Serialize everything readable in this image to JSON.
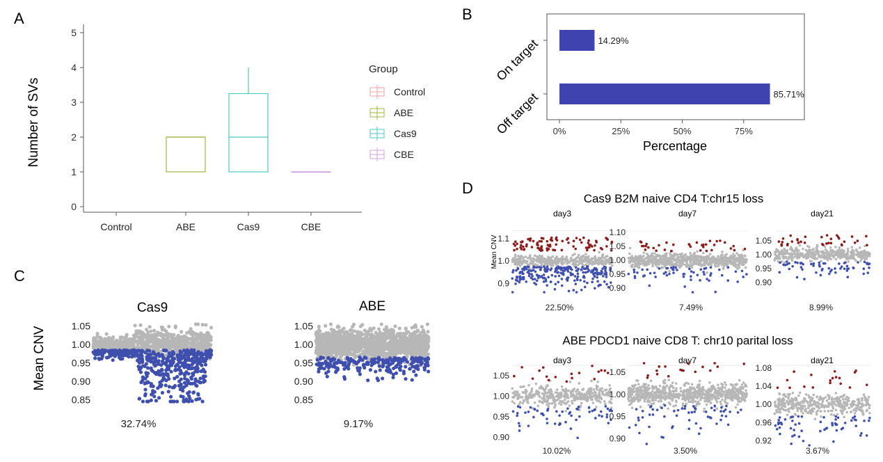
{
  "panel_labels": {
    "A": "A",
    "B": "B",
    "C": "C",
    "D": "D"
  },
  "colors": {
    "control": "#f4a3a3",
    "abe": "#a3b540",
    "cas9": "#4ec9c4",
    "cbe": "#d0a0e0",
    "bar": "#3f43b0",
    "grey": "#b7b7b7",
    "blue": "#3f4fae",
    "red": "#8a1c1c",
    "axis": "#777777"
  },
  "panel_a": {
    "ylabel": "Number of SVs",
    "legend_title": "Group",
    "legend": [
      "Control",
      "ABE",
      "Cas9",
      "CBE"
    ],
    "y_ticks": [
      "0",
      "1",
      "2",
      "3",
      "4",
      "5"
    ],
    "x_ticks": [
      "Control",
      "ABE",
      "Cas9",
      "CBE"
    ]
  },
  "panel_b": {
    "xlabel": "Percentage",
    "x_ticks": [
      "0%",
      "25%",
      "50%",
      "75%"
    ],
    "categories": [
      "On target",
      "Off target"
    ],
    "bar_labels": [
      "14.29%",
      "85.71%"
    ]
  },
  "panel_c": {
    "ylabel": "Mean CNV",
    "plots": [
      {
        "title": "Cas9",
        "y_ticks": [
          "1.05",
          "1.00",
          "0.95",
          "0.90",
          "0.85"
        ],
        "pct": "32.74%"
      },
      {
        "title": "ABE",
        "y_ticks": [
          "1.05",
          "1.00",
          "0.95",
          "0.90",
          "0.85"
        ],
        "pct": "9.17%"
      }
    ]
  },
  "panel_d": {
    "title1": "Cas9  B2M naive CD4 T:chr15 loss",
    "title2": "ABE  PDCD1 naive CD8 T: chr10 parital loss",
    "ylabel": "Mean CNV",
    "row1": [
      {
        "title": "day3",
        "y_ticks": [
          "1.1",
          "1.0",
          "0.9"
        ],
        "pct": "22.50%"
      },
      {
        "title": "day7",
        "y_ticks": [
          "1.10",
          "1.05",
          "1.00",
          "0.95",
          "0.90"
        ],
        "pct": "7.49%"
      },
      {
        "title": "day21",
        "y_ticks": [
          "1.05",
          "1.00",
          "0.95",
          "0.90"
        ],
        "pct": "8.99%"
      }
    ],
    "row2": [
      {
        "title": "day3",
        "y_ticks": [
          "1.05",
          "1.00",
          "0.95",
          "0.90"
        ],
        "pct": "10.02%"
      },
      {
        "title": "day7",
        "y_ticks": [
          "1.05",
          "1.00",
          "0.95",
          "0.90"
        ],
        "pct": "3.50%"
      },
      {
        "title": "day21",
        "y_ticks": [
          "1.08",
          "1.04",
          "1.00",
          "0.96",
          "0.92"
        ],
        "pct": "3.67%"
      }
    ]
  },
  "chart_data": [
    {
      "type": "box",
      "panel": "A",
      "ylabel": "Number of SVs",
      "ylim": [
        0,
        5
      ],
      "categories": [
        "Control",
        "ABE",
        "Cas9",
        "CBE"
      ],
      "legend": "right",
      "boxes": [
        {
          "category": "ABE",
          "min": 1,
          "q1": 1,
          "median": 2,
          "q3": 2,
          "max": 2
        },
        {
          "category": "Cas9",
          "min": 1,
          "q1": 1,
          "median": 2,
          "q3": 3.25,
          "max": 4
        },
        {
          "category": "CBE",
          "min": 1,
          "q1": 1,
          "median": 1,
          "q3": 1,
          "max": 1
        }
      ]
    },
    {
      "type": "bar",
      "panel": "B",
      "orientation": "horizontal",
      "xlabel": "Percentage",
      "xlim": [
        0,
        100
      ],
      "categories": [
        "On target",
        "Off target"
      ],
      "values": [
        14.29,
        85.71
      ]
    },
    {
      "type": "scatter",
      "panel": "C",
      "ylabel": "Mean CNV",
      "series": [
        {
          "name": "Cas9",
          "ylim": [
            0.83,
            1.06
          ],
          "loss_percent": 32.74
        },
        {
          "name": "ABE",
          "ylim": [
            0.83,
            1.06
          ],
          "loss_percent": 9.17
        }
      ]
    },
    {
      "type": "scatter",
      "panel": "D",
      "ylabel": "Mean CNV",
      "series": [
        {
          "name": "Cas9 day3",
          "ylim": [
            0.86,
            1.14
          ],
          "loss_percent": 22.5
        },
        {
          "name": "Cas9 day7",
          "ylim": [
            0.88,
            1.11
          ],
          "loss_percent": 7.49
        },
        {
          "name": "Cas9 day21",
          "ylim": [
            0.86,
            1.09
          ],
          "loss_percent": 8.99
        },
        {
          "name": "ABE day3",
          "ylim": [
            0.88,
            1.08
          ],
          "loss_percent": 10.02
        },
        {
          "name": "ABE day7",
          "ylim": [
            0.89,
            1.07
          ],
          "loss_percent": 3.5
        },
        {
          "name": "ABE day21",
          "ylim": [
            0.91,
            1.09
          ],
          "loss_percent": 3.67
        }
      ]
    }
  ]
}
